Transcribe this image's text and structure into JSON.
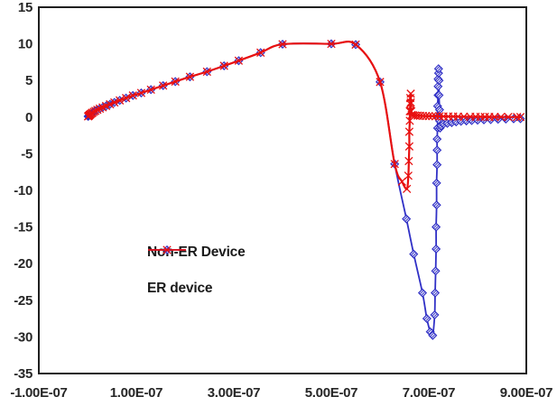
{
  "chart_data": {
    "type": "line",
    "title": "",
    "xlabel": "",
    "ylabel": "",
    "x_scale": "1e-7",
    "xlim": [
      -1,
      9
    ],
    "ylim": [
      -35,
      15
    ],
    "grid": false,
    "legend_position": "inside-left-middle",
    "x_tick_values": [
      -1,
      1,
      3,
      5,
      7,
      9
    ],
    "x_tick_labels": [
      "-1.00E-07",
      "1.00E-07",
      "3.00E-07",
      "5.00E-07",
      "7.00E-07",
      "9.00E-07"
    ],
    "y_tick_values": [
      15,
      10,
      5,
      0,
      -5,
      -10,
      -15,
      -20,
      -25,
      -30,
      -35
    ],
    "y_tick_labels": [
      "15",
      "10",
      "5",
      "0",
      "-5",
      "-10",
      "-15",
      "-20",
      "-25",
      "-30",
      "-35"
    ],
    "axis_color": "#1f1f1f",
    "series": [
      {
        "name": "Non-ER Device",
        "color": "#3030c6",
        "marker": "diamond",
        "line_width": 1.8,
        "x": [
          0.01,
          0.02,
          0.03,
          0.04,
          0.05,
          0.06,
          0.08,
          0.1,
          0.13,
          0.16,
          0.2,
          0.25,
          0.31,
          0.38,
          0.46,
          0.55,
          0.66,
          0.79,
          0.93,
          1.1,
          1.3,
          1.55,
          1.8,
          2.1,
          2.45,
          2.8,
          3.1,
          3.55,
          4.0,
          5.0,
          5.5,
          6.0,
          6.3,
          6.54,
          6.69,
          6.87,
          6.96,
          7.03,
          7.08,
          7.12,
          7.13,
          7.14,
          7.15,
          7.15,
          7.16,
          7.16,
          7.17,
          7.17,
          7.17,
          7.18,
          7.18,
          7.18,
          7.19,
          7.19,
          7.19,
          7.2,
          7.2,
          7.21,
          7.21,
          7.22,
          7.22,
          7.23,
          7.25,
          7.3,
          7.38,
          7.47,
          7.56,
          7.66,
          7.77,
          7.88,
          8.0,
          8.13,
          8.27,
          8.42,
          8.58,
          8.74,
          8.88
        ],
        "y": [
          0.1,
          0.15,
          0.2,
          0.28,
          0.33,
          0.4,
          0.5,
          0.6,
          0.73,
          0.85,
          1.0,
          1.15,
          1.33,
          1.52,
          1.75,
          2.0,
          2.28,
          2.6,
          2.95,
          3.3,
          3.75,
          4.3,
          4.85,
          5.5,
          6.2,
          7.0,
          7.7,
          8.8,
          9.95,
          10.0,
          9.9,
          4.8,
          -6.4,
          -13.9,
          -18.7,
          -24.0,
          -27.5,
          -29.3,
          -29.8,
          -27.0,
          -24.0,
          -21.0,
          -18.0,
          -15.0,
          -12.0,
          -9.0,
          -6.5,
          -4.5,
          -3.0,
          -1.5,
          0.0,
          1.5,
          3.0,
          4.2,
          5.2,
          6.0,
          6.6,
          5.0,
          3.0,
          1.0,
          -0.5,
          -1.5,
          -1.2,
          -0.95,
          -0.85,
          -0.75,
          -0.65,
          -0.58,
          -0.52,
          -0.47,
          -0.42,
          -0.38,
          -0.34,
          -0.3,
          -0.27,
          -0.24,
          -0.22
        ]
      },
      {
        "name": "ER device",
        "color": "#e81010",
        "marker": "x",
        "line_width": 2.2,
        "x": [
          0.01,
          0.02,
          0.03,
          0.04,
          0.05,
          0.06,
          0.08,
          0.1,
          0.13,
          0.16,
          0.2,
          0.25,
          0.31,
          0.38,
          0.46,
          0.55,
          0.66,
          0.79,
          0.93,
          1.1,
          1.3,
          1.55,
          1.8,
          2.1,
          2.45,
          2.8,
          3.1,
          3.55,
          4.0,
          5.0,
          5.5,
          6.0,
          6.3,
          6.45,
          6.55,
          6.58,
          6.59,
          6.6,
          6.6,
          6.61,
          6.61,
          6.62,
          6.62,
          6.63,
          6.63,
          6.64,
          6.65,
          6.68,
          6.72,
          6.77,
          6.82,
          6.88,
          6.94,
          7.0,
          7.07,
          7.14,
          7.22,
          7.3,
          7.4,
          7.5,
          7.6,
          7.72,
          7.85,
          7.96,
          8.06,
          8.15,
          8.24,
          8.35,
          8.48,
          8.63,
          8.81,
          8.88
        ],
        "y": [
          0.1,
          0.15,
          0.2,
          0.28,
          0.33,
          0.4,
          0.5,
          0.6,
          0.73,
          0.85,
          1.0,
          1.15,
          1.33,
          1.52,
          1.75,
          2.0,
          2.28,
          2.6,
          2.95,
          3.3,
          3.75,
          4.3,
          4.85,
          5.5,
          6.2,
          7.0,
          7.7,
          8.8,
          9.95,
          10.0,
          9.9,
          4.8,
          -6.4,
          -8.8,
          -9.8,
          -8.0,
          -6.0,
          -4.0,
          -2.0,
          -0.5,
          0.8,
          1.8,
          2.6,
          3.2,
          2.0,
          0.8,
          0.3,
          0.25,
          0.22,
          0.2,
          0.18,
          0.16,
          0.15,
          0.14,
          0.13,
          0.12,
          0.11,
          0.1,
          0.09,
          0.08,
          0.07,
          0.06,
          0.05,
          0.05,
          0.04,
          0.04,
          0.03,
          0.03,
          0.02,
          0.02,
          0.01,
          0.01
        ]
      }
    ]
  }
}
